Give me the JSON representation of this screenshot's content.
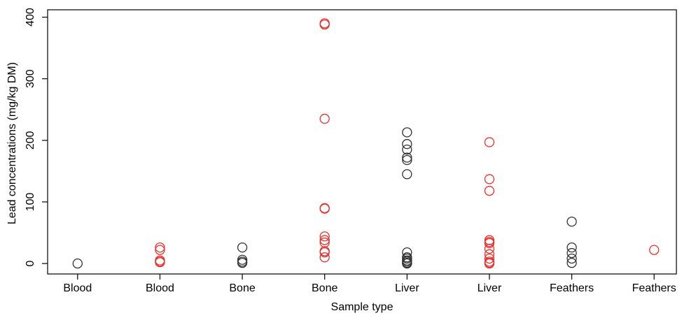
{
  "chart_data": {
    "type": "strip",
    "x_label": "Sample type",
    "y_label": "Lead concentrations (mg/kg DM)",
    "categories": [
      "Blood",
      "Blood",
      "Bone",
      "Bone",
      "Liver",
      "Liver",
      "Feathers",
      "Feathers"
    ],
    "colors": [
      "#333333",
      "#e8322e",
      "#333333",
      "#e8322e",
      "#333333",
      "#e8322e",
      "#333333",
      "#e8322e"
    ],
    "values": [
      [
        0
      ],
      [
        26,
        22,
        5,
        3,
        2
      ],
      [
        26,
        6,
        3,
        1
      ],
      [
        390,
        388,
        235,
        90,
        89,
        44,
        38,
        34,
        20,
        18,
        10
      ],
      [
        213,
        194,
        185,
        172,
        168,
        145,
        18,
        10,
        8,
        5,
        3,
        1,
        0
      ],
      [
        197,
        137,
        118,
        38,
        35,
        33,
        24,
        15,
        8,
        3,
        1,
        0
      ],
      [
        68,
        26,
        17,
        8,
        1
      ],
      [
        22
      ]
    ],
    "ylim": [
      -17,
      412
    ],
    "yticks": [
      0,
      100,
      200,
      300,
      400
    ]
  }
}
